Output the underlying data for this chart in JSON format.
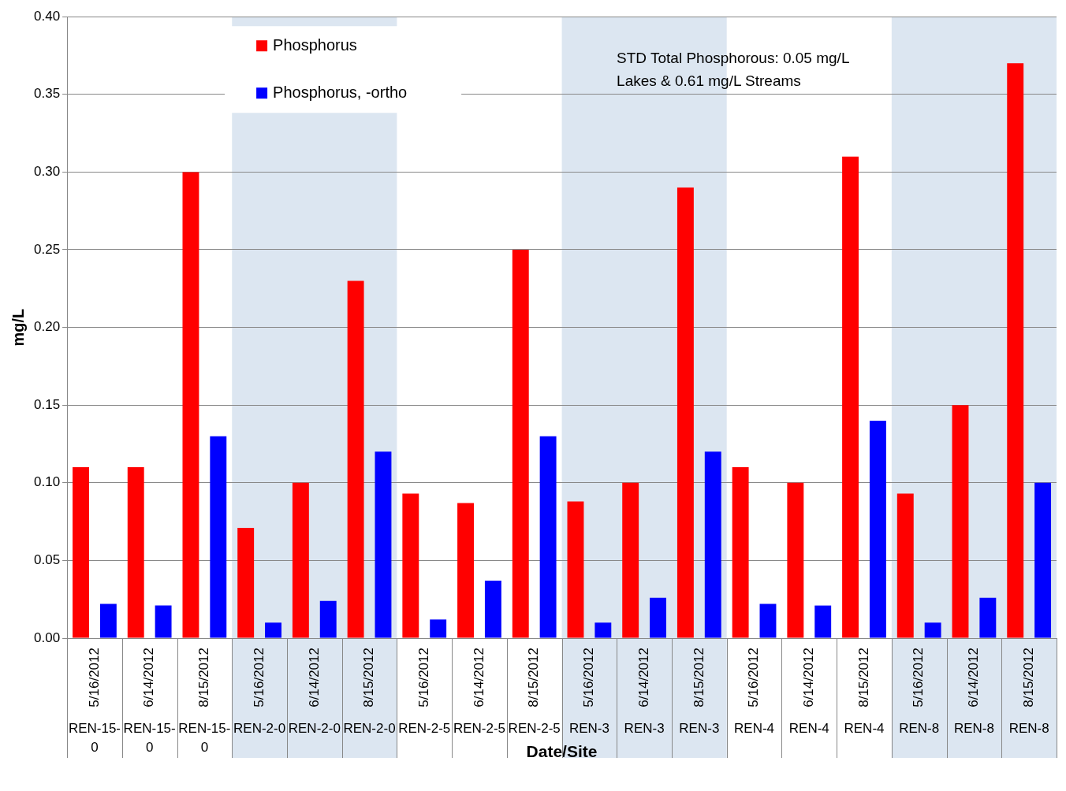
{
  "chart_data": {
    "type": "bar",
    "xlabel": "Date/Site",
    "ylabel": "mg/L",
    "categories": [
      "5/16/2012\nREN-15-0",
      "6/14/2012\nREN-15-0",
      "8/15/2012\nREN-15-0",
      "5/16/2012\nREN-2-0",
      "6/14/2012\nREN-2-0",
      "8/15/2012\nREN-2-0",
      "5/16/2012\nREN-2-5",
      "6/14/2012\nREN-2-5",
      "8/15/2012\nREN-2-5",
      "5/16/2012\nREN-3",
      "6/14/2012\nREN-3",
      "8/15/2012\nREN-3",
      "5/16/2012\nREN-4",
      "6/14/2012\nREN-4",
      "8/15/2012\nREN-4",
      "5/16/2012\nREN-8",
      "6/14/2012\nREN-8",
      "8/15/2012\nREN-8"
    ],
    "series": [
      {
        "name": "Phosphorus",
        "color": "#ff0000",
        "values": [
          0.11,
          0.11,
          0.3,
          0.071,
          0.1,
          0.23,
          0.093,
          0.087,
          0.25,
          0.088,
          0.1,
          0.29,
          0.11,
          0.1,
          0.31,
          0.093,
          0.15,
          0.37
        ]
      },
      {
        "name": "Phosphorus, -ortho",
        "color": "#0000ff",
        "values": [
          0.022,
          0.021,
          0.13,
          0.01,
          0.024,
          0.12,
          0.012,
          0.037,
          0.13,
          0.01,
          0.026,
          0.12,
          0.022,
          0.021,
          0.14,
          0.01,
          0.026,
          0.1
        ]
      }
    ],
    "ylim": [
      0,
      0.4
    ],
    "yticks": [
      {
        "value": 0,
        "label": "0.00"
      },
      {
        "value": 0.05,
        "label": "0.05"
      },
      {
        "value": 0.1,
        "label": "0.10"
      },
      {
        "value": 0.15,
        "label": "0.15"
      },
      {
        "value": 0.2,
        "label": "0.20"
      },
      {
        "value": 0.25,
        "label": "0.25"
      },
      {
        "value": 0.3,
        "label": "0.30"
      },
      {
        "value": 0.35,
        "label": "0.35"
      },
      {
        "value": 0.4,
        "label": "0.40"
      }
    ],
    "grid": "y",
    "legend": "top left",
    "bands": [
      {
        "axis": "x",
        "from": "5/16/2012\nREN-2-0",
        "to": "8/15/2012\nREN-2-0",
        "color": "#dce6f1"
      },
      {
        "axis": "x",
        "from": "5/16/2012\nREN-3",
        "to": "8/15/2012\nREN-3",
        "color": "#dce6f1"
      },
      {
        "axis": "x",
        "from": "5/16/2012\nREN-8",
        "to": "8/15/2012\nREN-8",
        "color": "#dce6f1"
      }
    ],
    "annotations": [
      "STD Total Phosphorous: 0.05 mg/L Lakes & 0.61 mg/L Streams"
    ]
  }
}
